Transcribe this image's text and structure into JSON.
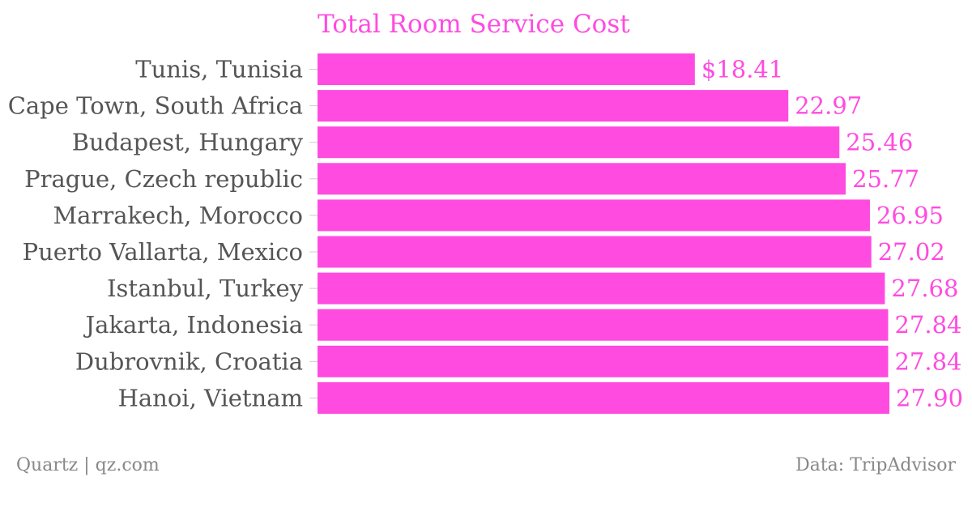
{
  "chart_data": {
    "type": "bar",
    "orientation": "horizontal",
    "title": "Total Room Service Cost",
    "categories": [
      "Tunis, Tunisia",
      "Cape Town, South Africa",
      "Budapest, Hungary",
      "Prague, Czech republic",
      "Marrakech, Morocco",
      "Puerto Vallarta, Mexico",
      "Istanbul, Turkey",
      "Jakarta, Indonesia",
      "Dubrovnik, Croatia",
      "Hanoi, Vietnam"
    ],
    "values": [
      18.41,
      22.97,
      25.46,
      25.77,
      26.95,
      27.02,
      27.68,
      27.84,
      27.84,
      27.9
    ],
    "value_labels": [
      "$18.41",
      "22.97",
      "25.46",
      "25.77",
      "26.95",
      "27.02",
      "27.68",
      "27.84",
      "27.84",
      "27.90"
    ],
    "xlim": [
      0,
      27.9
    ],
    "grid": false,
    "bar_color": "#ff4be0",
    "label_color": "#555555"
  },
  "footer": {
    "source_left": "Quartz | qz.com",
    "source_right": "Data: TripAdvisor"
  }
}
